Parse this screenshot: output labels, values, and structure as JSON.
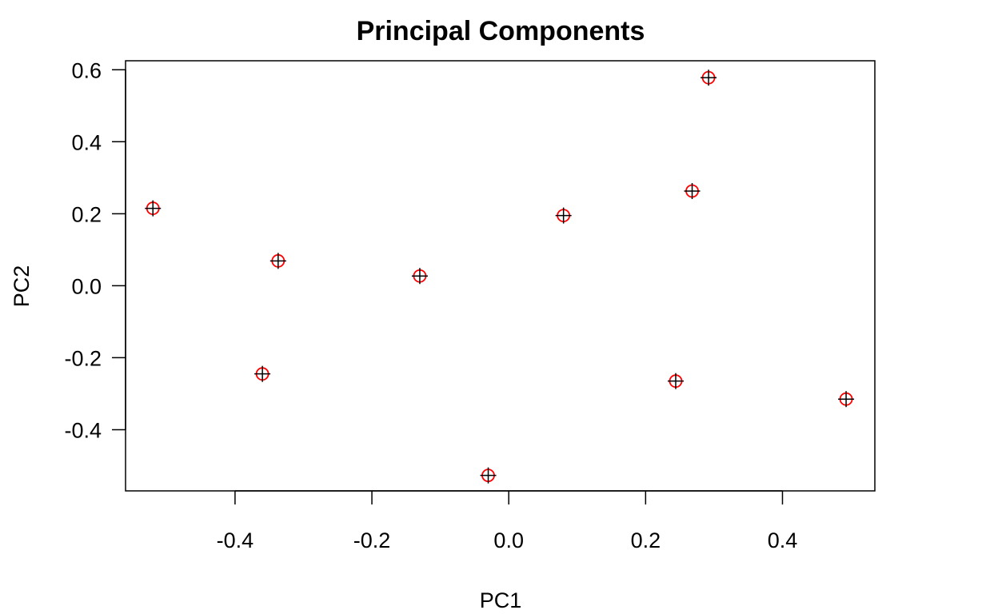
{
  "chart_data": {
    "type": "scatter",
    "title": "Principal Components",
    "xlabel": "PC1",
    "ylabel": "PC2",
    "xlim": [
      -0.56,
      0.535
    ],
    "ylim": [
      -0.57,
      0.625
    ],
    "x_ticks": [
      -0.4,
      -0.2,
      0.0,
      0.2,
      0.4
    ],
    "x_tick_labels": [
      "-0.4",
      "-0.2",
      "0.0",
      "0.2",
      "0.4"
    ],
    "y_ticks": [
      -0.4,
      -0.2,
      0.0,
      0.2,
      0.4,
      0.6
    ],
    "y_tick_labels": [
      "-0.4",
      "-0.2",
      "0.0",
      "0.2",
      "0.4",
      "0.6"
    ],
    "grid": false,
    "legend": "none",
    "colors": {
      "marker_circle": "#ff0000",
      "marker_cross": "#000000",
      "axis": "#000000"
    },
    "points": [
      {
        "x": -0.52,
        "y": 0.215
      },
      {
        "x": -0.337,
        "y": 0.069
      },
      {
        "x": -0.36,
        "y": -0.245
      },
      {
        "x": -0.13,
        "y": 0.027
      },
      {
        "x": -0.03,
        "y": -0.527
      },
      {
        "x": 0.08,
        "y": 0.195
      },
      {
        "x": 0.268,
        "y": 0.263
      },
      {
        "x": 0.292,
        "y": 0.578
      },
      {
        "x": 0.244,
        "y": -0.265
      },
      {
        "x": 0.493,
        "y": -0.315
      }
    ]
  }
}
